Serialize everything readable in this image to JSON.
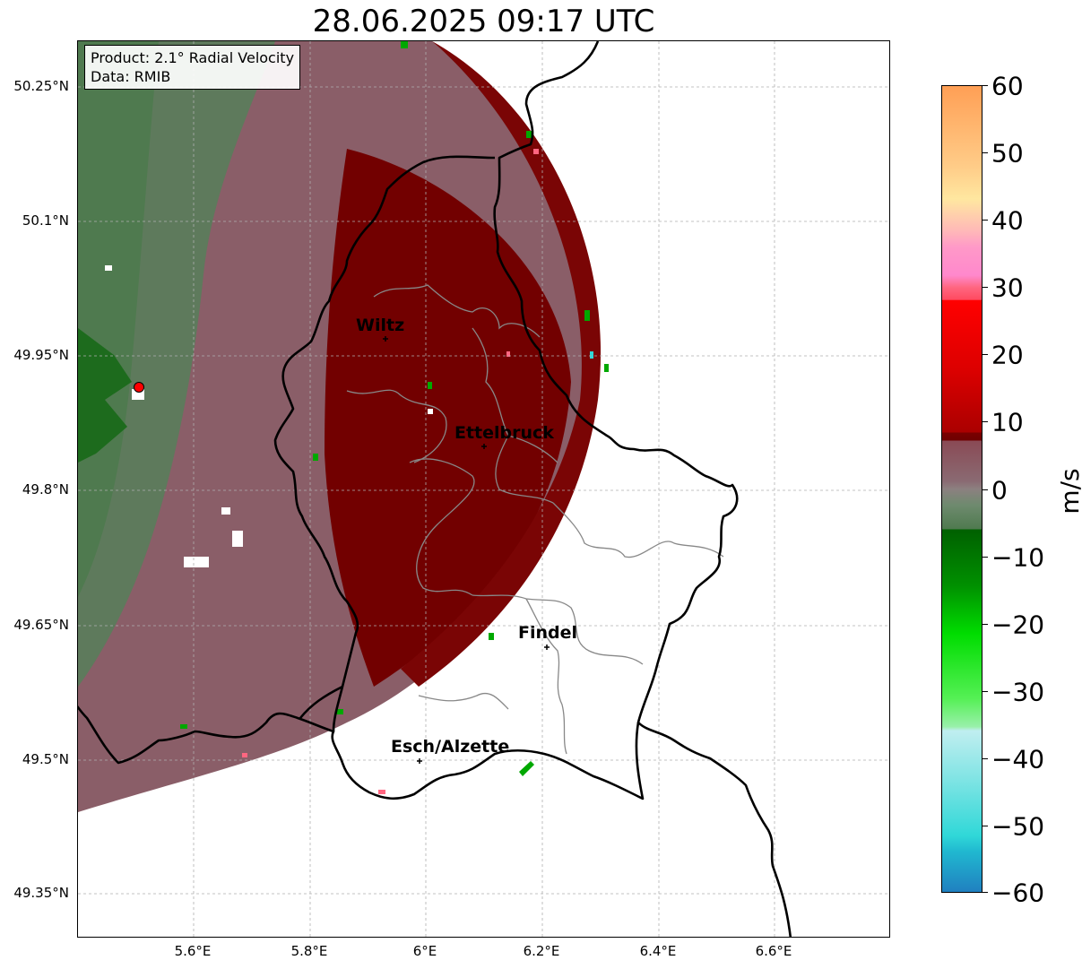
{
  "title": "28.06.2025 09:17 UTC",
  "info": {
    "product": "Product: 2.1° Radial Velocity",
    "data": "Data: RMIB"
  },
  "lat_ticks": [
    "50.25°N",
    "50.1°N",
    "49.95°N",
    "49.8°N",
    "49.65°N",
    "49.5°N",
    "49.35°N"
  ],
  "lon_ticks": [
    "5.6°E",
    "5.8°E",
    "6°E",
    "6.2°E",
    "6.4°E",
    "6.6°E"
  ],
  "cities": [
    {
      "name": "Wiltz"
    },
    {
      "name": "Ettelbruck"
    },
    {
      "name": "Findel"
    },
    {
      "name": "Esch/Alzette"
    }
  ],
  "colorbar": {
    "label": "m/s",
    "ticks": [
      "60",
      "50",
      "40",
      "30",
      "20",
      "10",
      "0",
      "−10",
      "−20",
      "−30",
      "−40",
      "−50",
      "−60"
    ],
    "min": -60,
    "max": 60,
    "colors": {
      "strong_outbound": "#6e0000",
      "weak_outbound": "#8a5a66",
      "near_zero": "#8c8080",
      "weak_inbound": "#5b7f5b",
      "inbound": "#008800",
      "pink": "#ff6680",
      "cyan": "#30d8d8",
      "orange": "#ff9f55"
    }
  }
}
